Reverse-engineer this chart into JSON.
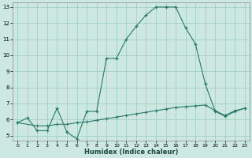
{
  "xlabel": "Humidex (Indice chaleur)",
  "ylabel": "",
  "bg_color": "#cce8e0",
  "grid_color": "#99ccbb",
  "line_color": "#2a7a6a",
  "xlim": [
    -0.5,
    23.5
  ],
  "ylim": [
    4.7,
    13.3
  ],
  "xticks": [
    0,
    1,
    2,
    3,
    4,
    5,
    6,
    7,
    8,
    9,
    10,
    11,
    12,
    13,
    14,
    15,
    16,
    17,
    18,
    19,
    20,
    21,
    22,
    23
  ],
  "yticks": [
    5,
    6,
    7,
    8,
    9,
    10,
    11,
    12,
    13
  ],
  "curve1_x": [
    0,
    1,
    2,
    3,
    4,
    5,
    6,
    7,
    8,
    9,
    10,
    11,
    12,
    13,
    14,
    15,
    16,
    17,
    18,
    19,
    20,
    21,
    22,
    23
  ],
  "curve1_y": [
    5.8,
    6.1,
    5.3,
    5.3,
    6.7,
    5.2,
    4.8,
    6.5,
    6.5,
    9.8,
    9.8,
    11.0,
    11.8,
    12.5,
    13.0,
    13.0,
    13.0,
    11.7,
    10.7,
    8.2,
    6.5,
    6.2,
    6.5,
    6.7
  ],
  "curve2_x": [
    0,
    2,
    3,
    4,
    5,
    6,
    7,
    8,
    9,
    10,
    11,
    12,
    13,
    14,
    15,
    16,
    17,
    18,
    19,
    20,
    21,
    22,
    23
  ],
  "curve2_y": [
    5.8,
    5.6,
    5.6,
    5.7,
    5.7,
    5.8,
    5.85,
    5.95,
    6.05,
    6.15,
    6.25,
    6.35,
    6.45,
    6.55,
    6.65,
    6.75,
    6.8,
    6.85,
    6.9,
    6.55,
    6.25,
    6.55,
    6.7
  ]
}
